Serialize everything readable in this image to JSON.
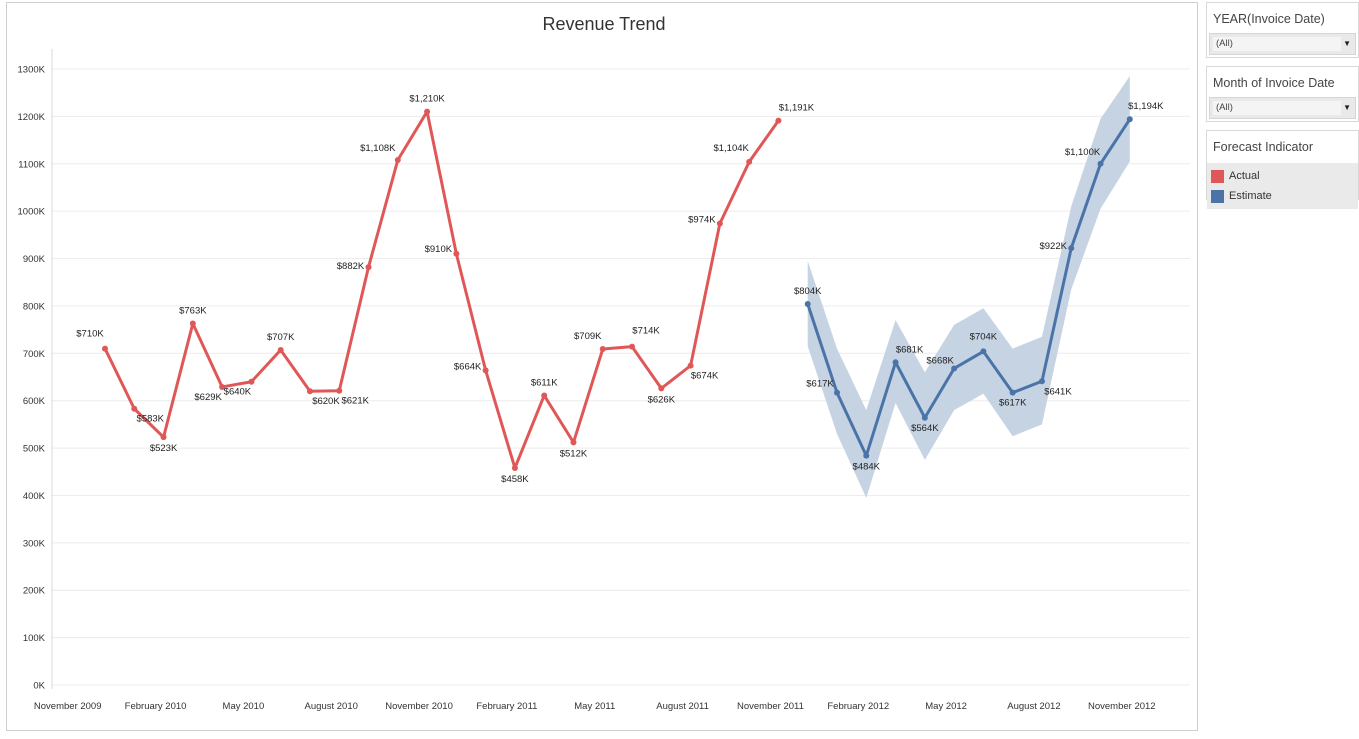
{
  "filters": [
    {
      "title": "YEAR(Invoice Date)",
      "value": "(All)"
    },
    {
      "title": "Month of Invoice Date",
      "value": "(All)"
    }
  ],
  "legend": {
    "title": "Forecast Indicator",
    "items": [
      {
        "label": "Actual",
        "color": "#e05757"
      },
      {
        "label": "Estimate",
        "color": "#4a74a8"
      }
    ]
  },
  "icons": {
    "dropdown": "caret-down-icon"
  },
  "chart_data": {
    "type": "line",
    "title": "Revenue Trend",
    "xlabel": "",
    "ylabel": "",
    "ylim": [
      0,
      1300
    ],
    "y_ticks": [
      "0K",
      "100K",
      "200K",
      "300K",
      "400K",
      "500K",
      "600K",
      "700K",
      "800K",
      "900K",
      "1000K",
      "1100K",
      "1200K",
      "1300K"
    ],
    "x_ticks": [
      "November 2009",
      "February 2010",
      "May 2010",
      "August 2010",
      "November 2010",
      "February 2011",
      "May 2011",
      "August 2011",
      "November 2011",
      "February 2012",
      "May 2012",
      "August 2012",
      "November 2012"
    ],
    "grid": true,
    "series": [
      {
        "name": "Actual",
        "color": "#e05757",
        "x": [
          "Dec 2009",
          "Jan 2010",
          "Feb 2010",
          "Mar 2010",
          "Apr 2010",
          "May 2010",
          "Jun 2010",
          "Jul 2010",
          "Aug 2010",
          "Sep 2010",
          "Oct 2010",
          "Nov 2010",
          "Dec 2010",
          "Jan 2011",
          "Feb 2011",
          "Mar 2011",
          "Apr 2011",
          "May 2011",
          "Jun 2011",
          "Jul 2011",
          "Aug 2011",
          "Sep 2011",
          "Oct 2011",
          "Nov 2011"
        ],
        "values": [
          710,
          583,
          523,
          763,
          629,
          640,
          707,
          620,
          621,
          882,
          1108,
          1210,
          910,
          664,
          458,
          611,
          512,
          709,
          714,
          626,
          674,
          974,
          1104,
          1191
        ],
        "labels": [
          "$710K",
          "$583K",
          "$523K",
          "$763K",
          "$629K",
          "$640K",
          "$707K",
          "$620K",
          "$621K",
          "$882K",
          "$1,108K",
          "$1,210K",
          "$910K",
          "$664K",
          "$458K",
          "$611K",
          "$512K",
          "$709K",
          "$714K",
          "$626K",
          "$674K",
          "$974K",
          "$1,104K",
          "$1,191K"
        ]
      },
      {
        "name": "Estimate",
        "color": "#4a74a8",
        "band_color": "#c5d3e3",
        "x": [
          "Dec 2011",
          "Jan 2012",
          "Feb 2012",
          "Mar 2012",
          "Apr 2012",
          "May 2012",
          "Jun 2012",
          "Jul 2012",
          "Aug 2012",
          "Sep 2012",
          "Oct 2012",
          "Nov 2012"
        ],
        "values": [
          804,
          617,
          484,
          681,
          564,
          668,
          704,
          617,
          641,
          922,
          1100,
          1194
        ],
        "labels": [
          "$804K",
          "$617K",
          "$484K",
          "$681K",
          "$564K",
          "$668K",
          "$704K",
          "$617K",
          "$641K",
          "$922K",
          "$1,100K",
          "$1,194K"
        ],
        "band_high": [
          895,
          710,
          580,
          770,
          660,
          760,
          795,
          710,
          735,
          1010,
          1195,
          1285
        ],
        "band_low": [
          715,
          530,
          395,
          595,
          475,
          580,
          615,
          525,
          550,
          835,
          1005,
          1105
        ]
      }
    ]
  }
}
